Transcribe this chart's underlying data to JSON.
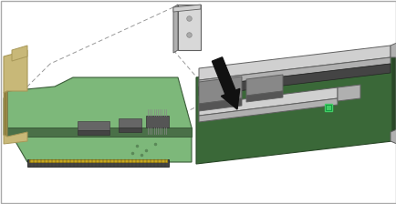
{
  "bg_color": "#ffffff",
  "fig_width": 4.35,
  "fig_height": 2.24,
  "dpi": 100,
  "pcb_green": "#7db87a",
  "pcb_green_dark": "#5a8c57",
  "pcb_green_side": "#4a7048",
  "pcb_edge": "#3a5c38",
  "bracket_tan": "#c8b878",
  "bracket_tan_dark": "#a89858",
  "bracket_tan_side": "#908040",
  "metal_light": "#d0d0d0",
  "metal_mid": "#b0b0b0",
  "metal_dark": "#888888",
  "metal_edge": "#606060",
  "slot_dark": "#444444",
  "slot_black": "#222222",
  "riser_green": "#3a6838",
  "riser_green_light": "#5a8858",
  "riser_green_dark": "#2a4828",
  "conn_gray": "#888888",
  "conn_dark": "#555555",
  "arrow_black": "#111111",
  "dash_color": "#999999",
  "mini_card_face": "#d8d8d8",
  "mini_card_side": "#b0b0b0",
  "green_led": "#44cc66",
  "border_color": "#aaaaaa"
}
